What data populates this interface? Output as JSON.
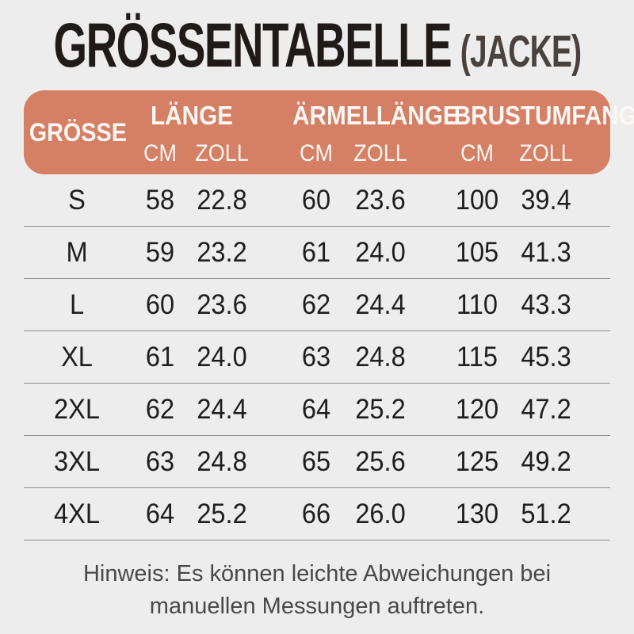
{
  "title": {
    "main": "GRÖSSENTABELLE",
    "sub": "(JACKE)"
  },
  "table": {
    "size_header": "GRÖSSE",
    "groups": [
      {
        "label": "LÄNGE",
        "units": [
          "CM",
          "ZOLL"
        ]
      },
      {
        "label": "ÄRMELLÄNGE",
        "units": [
          "CM",
          "ZOLL"
        ]
      },
      {
        "label": "BRUSTUMFANG",
        "units": [
          "CM",
          "ZOLL"
        ]
      }
    ],
    "rows": [
      {
        "size": "S",
        "values": [
          "58",
          "22.8",
          "60",
          "23.6",
          "100",
          "39.4"
        ]
      },
      {
        "size": "M",
        "values": [
          "59",
          "23.2",
          "61",
          "24.0",
          "105",
          "41.3"
        ]
      },
      {
        "size": "L",
        "values": [
          "60",
          "23.6",
          "62",
          "24.4",
          "110",
          "43.3"
        ]
      },
      {
        "size": "XL",
        "values": [
          "61",
          "24.0",
          "63",
          "24.8",
          "115",
          "45.3"
        ]
      },
      {
        "size": "2XL",
        "values": [
          "62",
          "24.4",
          "64",
          "25.2",
          "120",
          "47.2"
        ]
      },
      {
        "size": "3XL",
        "values": [
          "63",
          "24.8",
          "65",
          "25.6",
          "125",
          "49.2"
        ]
      },
      {
        "size": "4XL",
        "values": [
          "64",
          "25.2",
          "66",
          "26.0",
          "130",
          "51.2"
        ]
      }
    ]
  },
  "note": "Hinweis: Es können leichte Abweichungen bei manuellen Messungen auftreten.",
  "colors": {
    "page_bg": "#eeedee",
    "header_bg": "#d57f65",
    "header_text": "#fbf7f4",
    "title_text": "#201b18",
    "title_sub_text": "#4a423c",
    "body_text": "#1f1e1c",
    "divider": "#8d8d8d",
    "note_text": "#484848"
  },
  "chart_data": {
    "type": "table",
    "title": "GRÖSSENTABELLE (JACKE)",
    "columns": [
      "GRÖSSE",
      "LÄNGE CM",
      "LÄNGE ZOLL",
      "ÄRMELLÄNGE CM",
      "ÄRMELLÄNGE ZOLL",
      "BRUSTUMFANG CM",
      "BRUSTUMFANG ZOLL"
    ],
    "rows": [
      [
        "S",
        58,
        22.8,
        60,
        23.6,
        100,
        39.4
      ],
      [
        "M",
        59,
        23.2,
        61,
        24.0,
        105,
        41.3
      ],
      [
        "L",
        60,
        23.6,
        62,
        24.4,
        110,
        43.3
      ],
      [
        "XL",
        61,
        24.0,
        63,
        24.8,
        115,
        45.3
      ],
      [
        "2XL",
        62,
        24.4,
        64,
        25.2,
        120,
        47.2
      ],
      [
        "3XL",
        63,
        24.8,
        65,
        25.6,
        125,
        49.2
      ],
      [
        "4XL",
        64,
        25.2,
        66,
        26.0,
        130,
        51.2
      ]
    ],
    "footnote": "Hinweis: Es können leichte Abweichungen bei manuellen Messungen auftreten."
  }
}
